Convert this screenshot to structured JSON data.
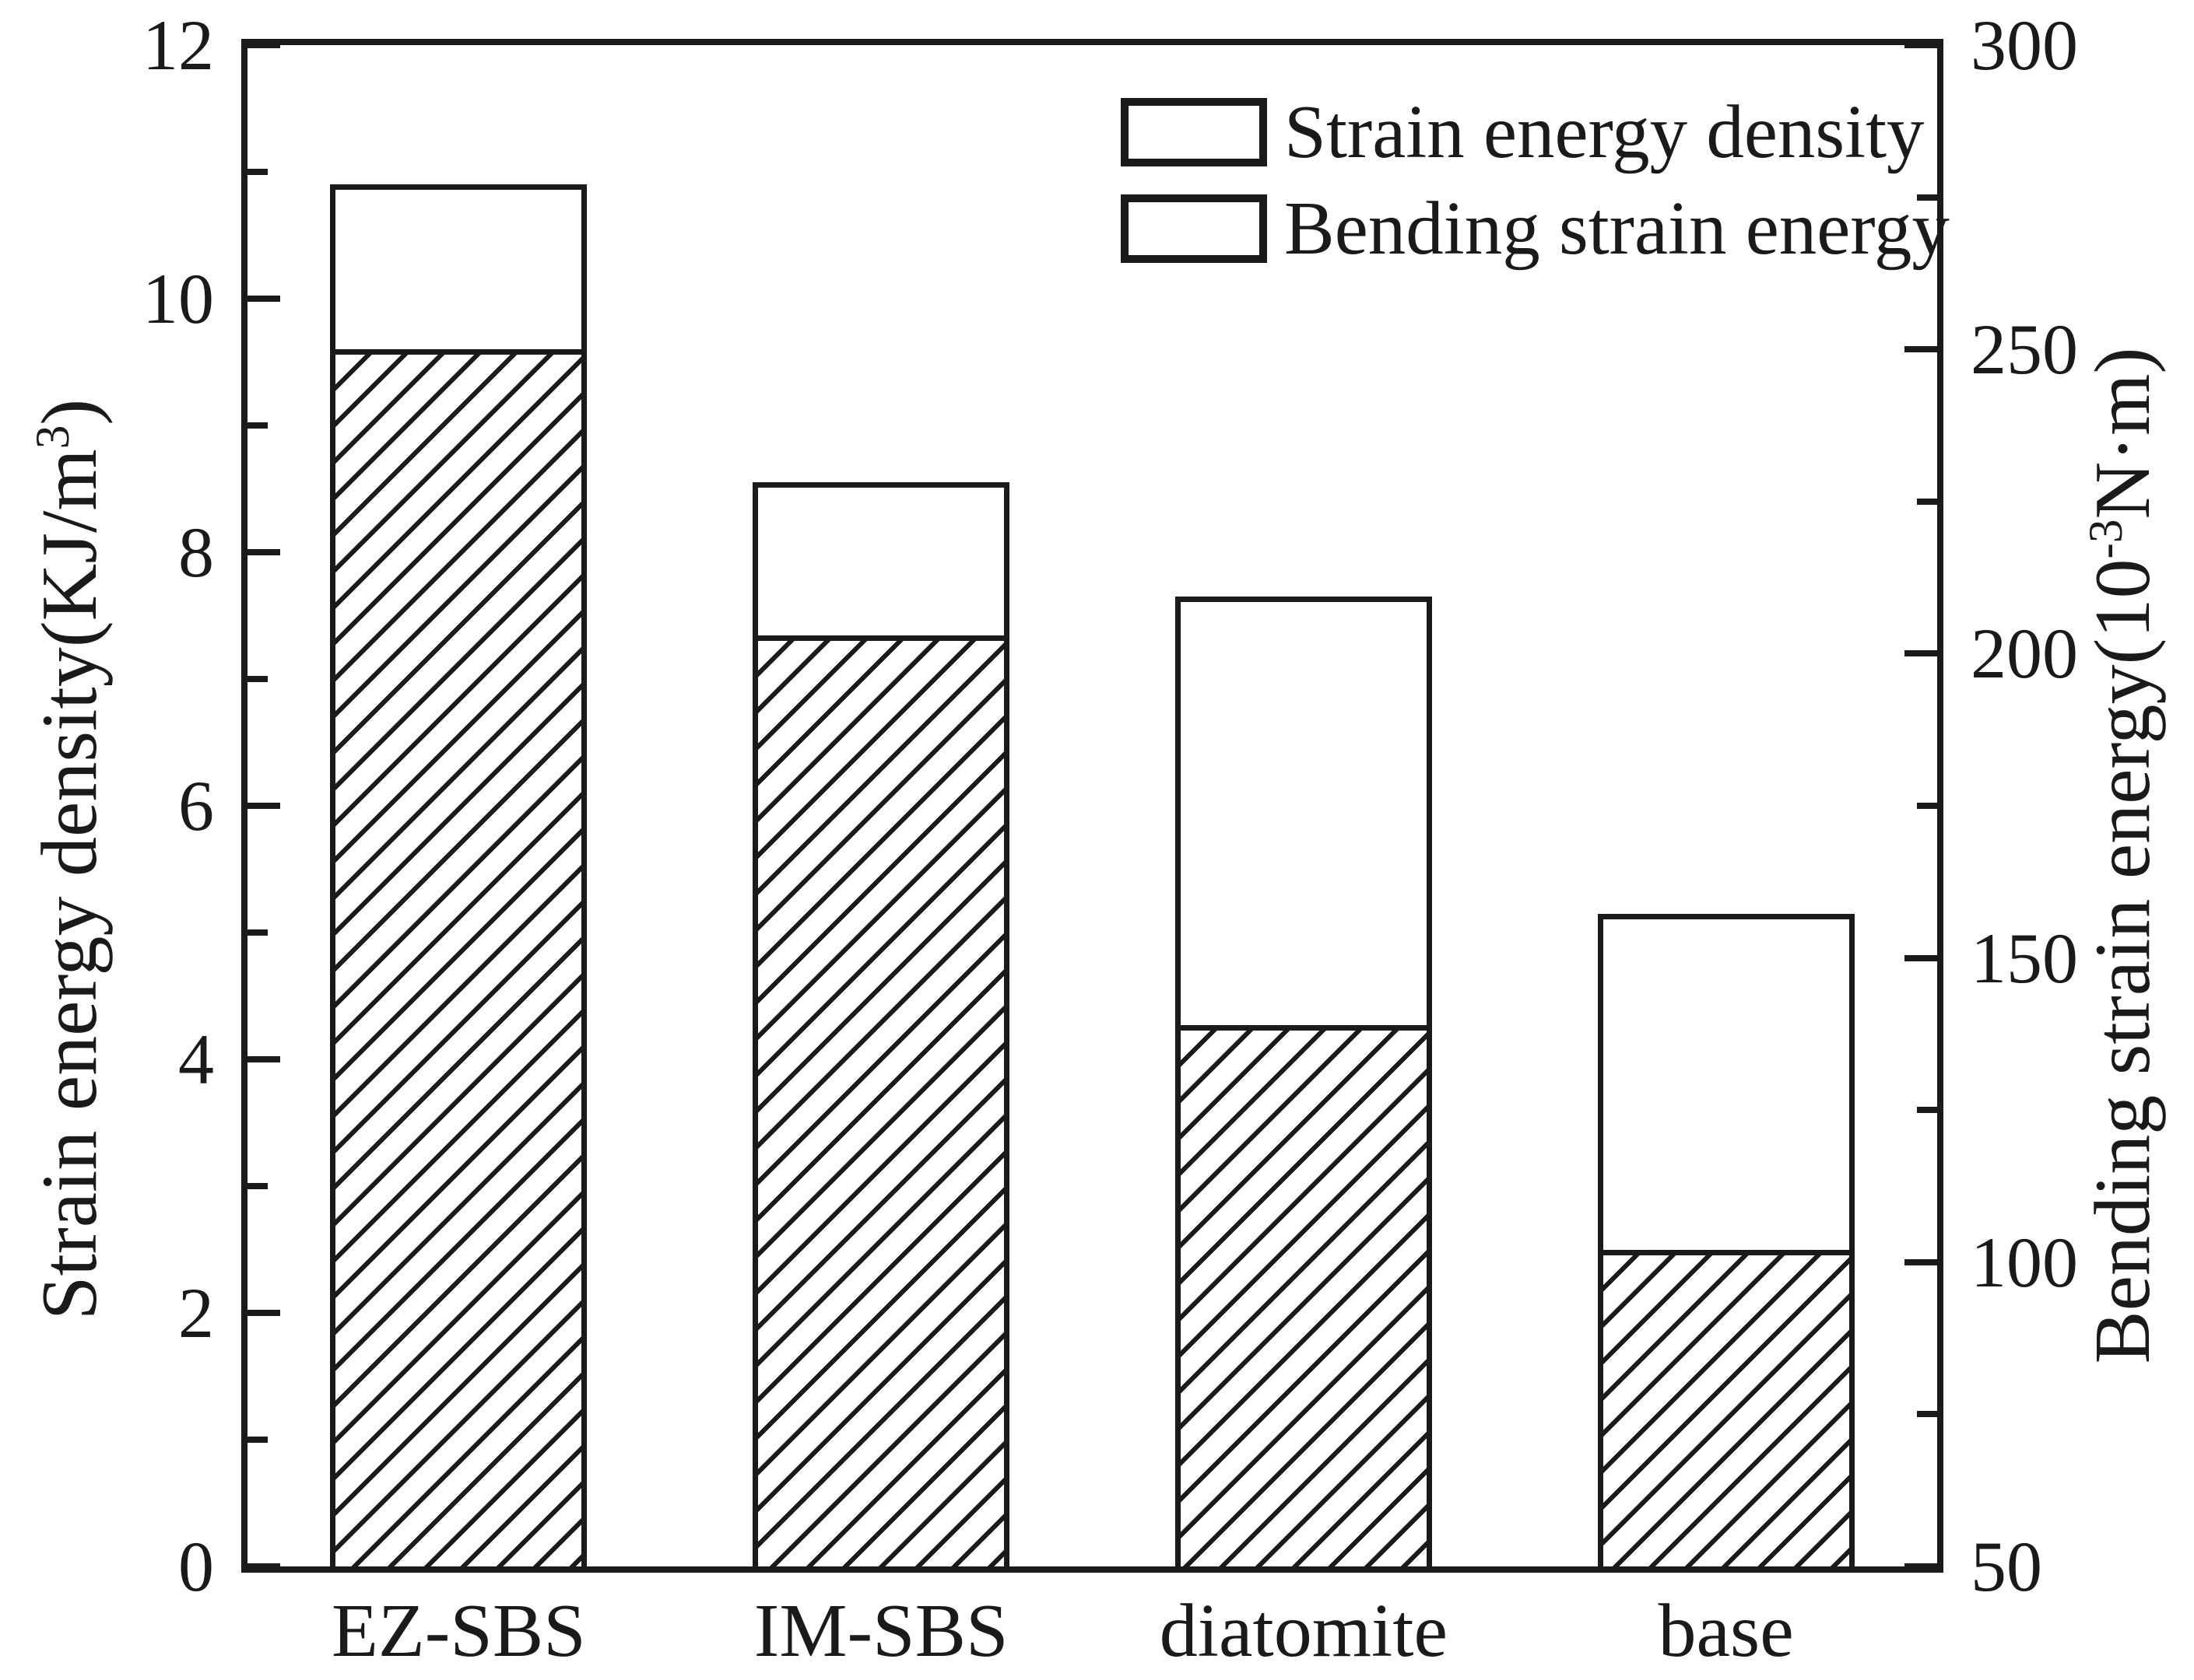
{
  "chart_data": {
    "type": "bar",
    "layout_hint": "two overlaid bar series (total outline bar + hatched bar), dual y-axes, legend top-right inside plot, no gridlines",
    "categories": [
      "EZ-SBS",
      "IM-SBS",
      "diatomite",
      "base"
    ],
    "series": [
      {
        "name": "Strain energy density",
        "axis": "left",
        "unit": "KJ/m3",
        "style": "plain",
        "values": [
          10.9,
          8.55,
          7.65,
          5.15
        ]
      },
      {
        "name": "Bending strain energy",
        "axis": "right",
        "unit": "10-3 N·m",
        "style": "hatched",
        "values": [
          250,
          203,
          139,
          102
        ]
      }
    ],
    "left_axis": {
      "label_prefix": "Strain energy density(KJ/m",
      "label_sup": "3",
      "label_suffix": ")",
      "ticks": [
        0,
        2,
        4,
        6,
        8,
        10,
        12
      ],
      "range": [
        0,
        12
      ]
    },
    "right_axis": {
      "label_prefix": "Bending strain energy(10",
      "label_sup": "-3",
      "label_suffix": "N·m)",
      "ticks": [
        50,
        100,
        150,
        200,
        250,
        300
      ],
      "range": [
        50,
        300
      ]
    },
    "legend": [
      {
        "label": "Strain energy density",
        "swatch": "plain"
      },
      {
        "label": "Bending strain energy",
        "swatch": "hatched"
      }
    ],
    "colors": {
      "ink": "#1a1a1a",
      "background": "#ffffff"
    }
  }
}
